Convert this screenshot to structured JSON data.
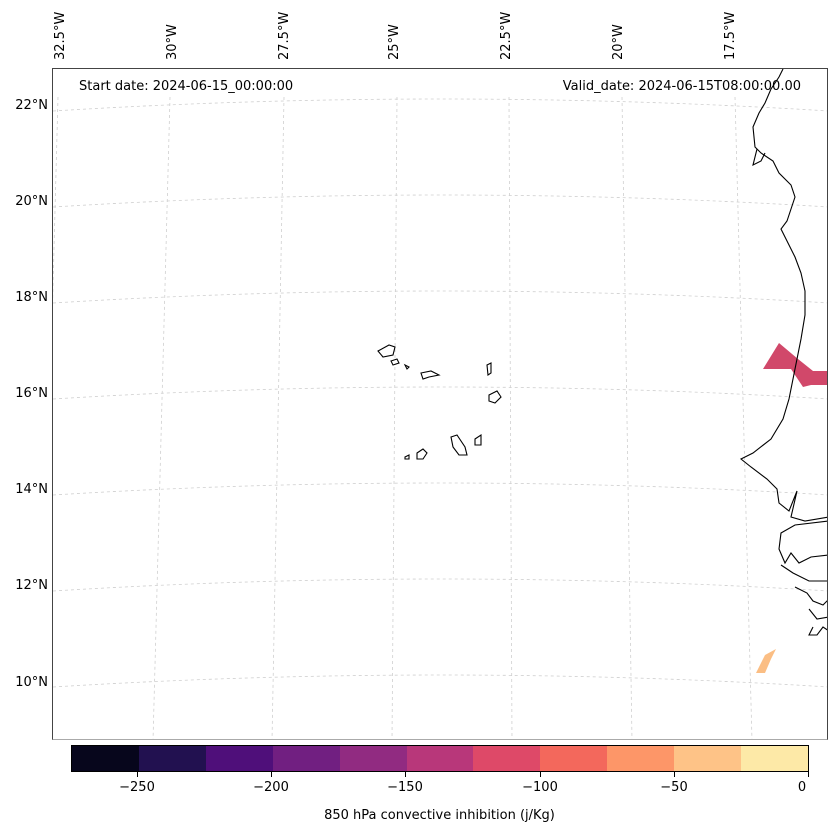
{
  "map": {
    "start_date": "Start date: 2024-06-15_00:00:00",
    "valid_date": "Valid_date: 2024-06-15T08:00:00.00",
    "lon_labels": [
      "32.5°W",
      "30°W",
      "27.5°W",
      "25°W",
      "22.5°W",
      "20°W",
      "17.5°W"
    ],
    "lat_labels": [
      "22°N",
      "20°N",
      "18°N",
      "16°N",
      "14°N",
      "12°N",
      "10°N"
    ]
  },
  "colorbar": {
    "label": "850 hPa convective inhibition (j/Kg)",
    "tick_labels": [
      "−250",
      "−200",
      "−150",
      "−100",
      "−50",
      "0"
    ],
    "colors": [
      "#07061c",
      "#221150",
      "#4f0f7a",
      "#711f81",
      "#912b81",
      "#b8377a",
      "#de4968",
      "#f3685c",
      "#fd9668",
      "#fec387",
      "#fde9a7"
    ]
  }
}
